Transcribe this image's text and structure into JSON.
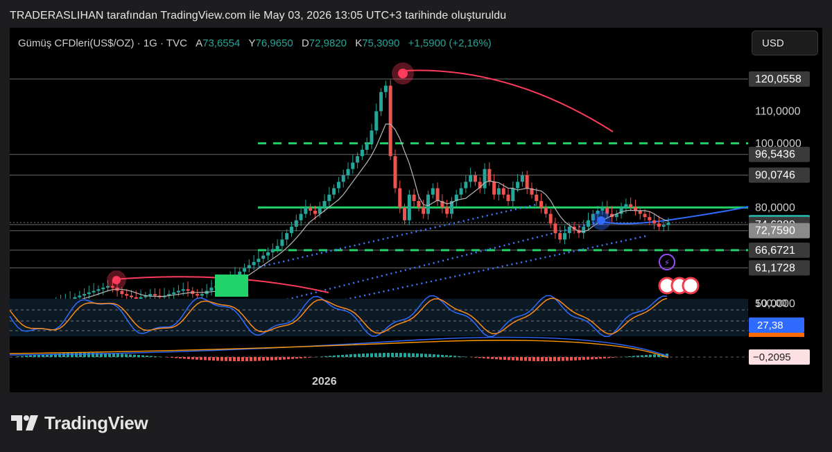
{
  "header": {
    "attribution": "TRADERASLIHAN tarafından TradingView.com ile May 03, 2026 13:05 UTC+3 tarihinde oluşturuldu"
  },
  "symbol": {
    "name": "Gümüş CFDleri(US$/OZ) · 1G · TVC",
    "open_label": "A",
    "open": "73,6554",
    "high_label": "Y",
    "high": "76,9650",
    "low_label": "D",
    "low": "72,9820",
    "close_label": "K",
    "close": "75,3090",
    "change": "+1,5900 (+2,16%)"
  },
  "currency_button": "USD",
  "price_axis": {
    "ticks": [
      "120,0558",
      "110,0000",
      "100,0000",
      "96,5436",
      "90,0746",
      "80,0000",
      "75,3090",
      "74,6389",
      "72,7590",
      "66,6721",
      "61,1728",
      "50,0000"
    ]
  },
  "oscillator_axis": {
    "top": "100,00",
    "current": "27,38"
  },
  "macd_axis": {
    "current": "−0,2095"
  },
  "time_axis": {
    "year_label": "2026"
  },
  "colors": {
    "up": "#26a69a",
    "down": "#ef5350",
    "green_level": "#22d36b",
    "blue_trend": "#2f6bff",
    "ma": "#b8b8b8",
    "stoch_k": "#2f6bff",
    "stoch_d": "#ff8c1a"
  },
  "brand": "TradingView",
  "chart_data": {
    "type": "candlestick",
    "title": "",
    "ylim": [
      45,
      125
    ],
    "horizontal_levels": [
      120.0558,
      96.5436,
      90.0746,
      74.6389,
      72.759,
      66.6721,
      61.1728
    ],
    "dashed_levels": [
      100,
      66.67
    ],
    "green_line": 80,
    "last_price": 75.309,
    "peak": 120.0558,
    "close_series": [
      50,
      50.5,
      51,
      51,
      51.5,
      52,
      52.5,
      53,
      53.5,
      54,
      54.5,
      55,
      55.5,
      55,
      54,
      53,
      52.5,
      52,
      51.5,
      52,
      52.5,
      53,
      52.5,
      52,
      52.5,
      53,
      53.5,
      54,
      54.5,
      54,
      53,
      52.5,
      53,
      54,
      55,
      55.5,
      56,
      57,
      58,
      59,
      60,
      61,
      62,
      63,
      64,
      65,
      66,
      67,
      68,
      70,
      72,
      74,
      76,
      78,
      80,
      79,
      78,
      80,
      82,
      84,
      86,
      88,
      90,
      92,
      94,
      96,
      98,
      100,
      104,
      110,
      116,
      118,
      96,
      86,
      80,
      76,
      84,
      82,
      80,
      78,
      84,
      86,
      82,
      80,
      78,
      82,
      84,
      86,
      88,
      90,
      88,
      86,
      92,
      88,
      84,
      86,
      84,
      82,
      86,
      88,
      90,
      86,
      84,
      82,
      80,
      78,
      75,
      72,
      70,
      72,
      74,
      73,
      72,
      74,
      76,
      78,
      79,
      80,
      78,
      77,
      78,
      80,
      81,
      80,
      79,
      78,
      77,
      76,
      75,
      74,
      74.5,
      75.3
    ]
  }
}
